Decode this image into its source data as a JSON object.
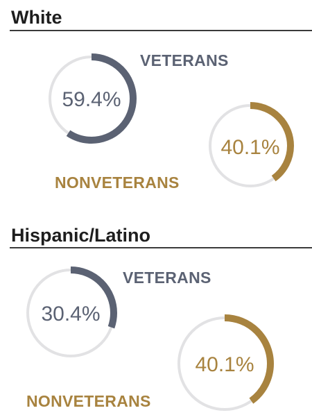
{
  "colors": {
    "veterans": "#5b6273",
    "nonveterans": "#a8833f",
    "track": "#e2e2e4",
    "title": "#1e1e1e"
  },
  "chart_data": [
    {
      "type": "pie",
      "title": "White",
      "series": [
        {
          "name": "VETERANS",
          "value": 59.4,
          "label": "59.4%"
        },
        {
          "name": "NONVETERANS",
          "value": 40.1,
          "label": "40.1%"
        }
      ]
    },
    {
      "type": "pie",
      "title": "Hispanic/Latino",
      "series": [
        {
          "name": "VETERANS",
          "value": 30.4,
          "label": "30.4%"
        },
        {
          "name": "NONVETERANS",
          "value": 40.1,
          "label": "40.1%"
        }
      ]
    }
  ]
}
